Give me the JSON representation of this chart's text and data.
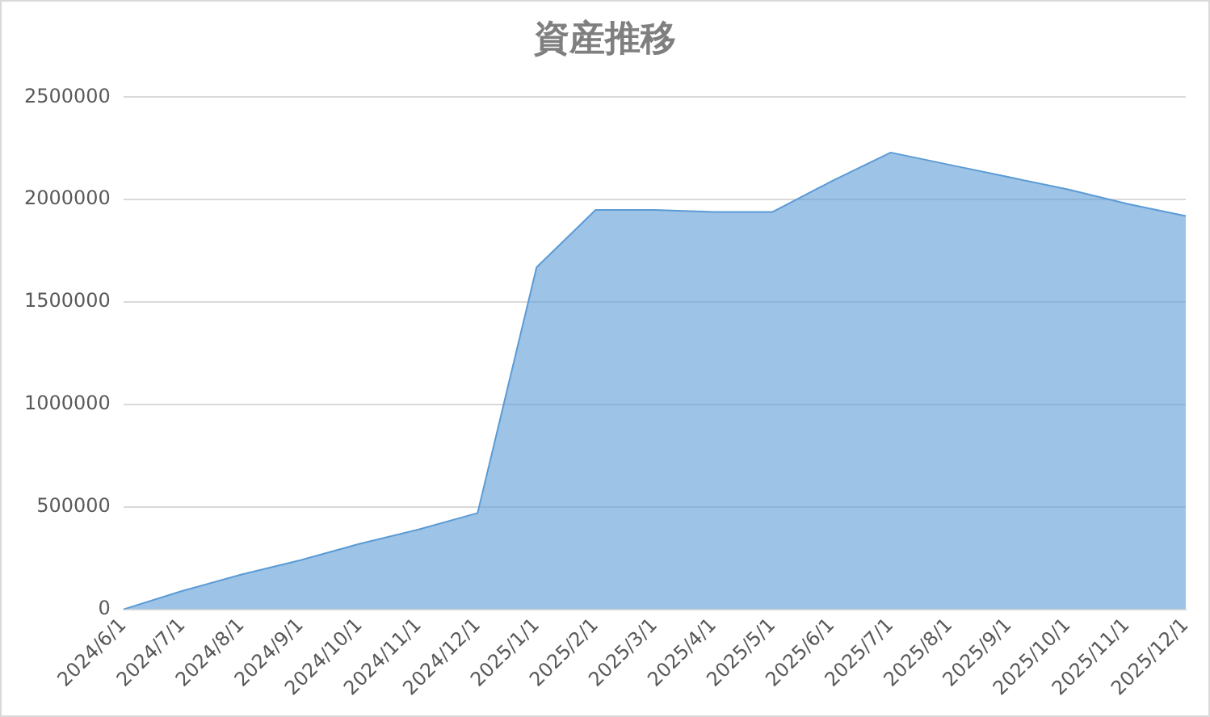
{
  "chart_data": {
    "type": "area",
    "title": "資産推移",
    "categories": [
      "2024/6/1",
      "2024/7/1",
      "2024/8/1",
      "2024/9/1",
      "2024/10/1",
      "2024/11/1",
      "2024/12/1",
      "2025/1/1",
      "2025/2/1",
      "2025/3/1",
      "2025/4/1",
      "2025/5/1",
      "2025/6/1",
      "2025/7/1",
      "2025/8/1",
      "2025/9/1",
      "2025/10/1",
      "2025/11/1",
      "2025/12/1"
    ],
    "series": [
      {
        "color": "#5b9bd5",
        "values": [
          0,
          90000,
          170000,
          240000,
          320000,
          390000,
          470000,
          1670000,
          1950000,
          1950000,
          1940000,
          1940000,
          2090000,
          2230000,
          2170000,
          2110000,
          2050000,
          1980000,
          1920000
        ]
      }
    ],
    "ylim": [
      0,
      2500000
    ],
    "yticks": [
      0,
      500000,
      1000000,
      1500000,
      2000000,
      2500000
    ],
    "grid": "y",
    "legend": false,
    "marker": "none"
  }
}
